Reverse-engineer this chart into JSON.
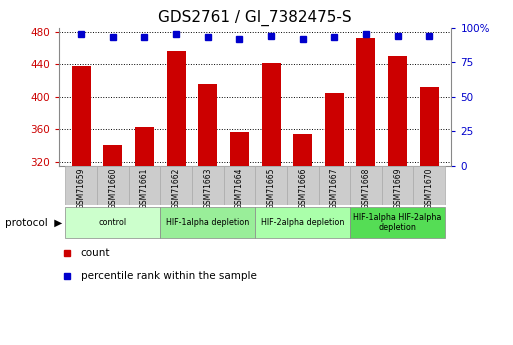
{
  "title": "GDS2761 / GI_7382475-S",
  "samples": [
    "GSM71659",
    "GSM71660",
    "GSM71661",
    "GSM71662",
    "GSM71663",
    "GSM71664",
    "GSM71665",
    "GSM71666",
    "GSM71667",
    "GSM71668",
    "GSM71669",
    "GSM71670"
  ],
  "counts": [
    438,
    340,
    362,
    456,
    415,
    356,
    442,
    354,
    405,
    472,
    450,
    412
  ],
  "percentile_ranks": [
    95,
    93,
    93,
    95,
    93,
    92,
    94,
    92,
    93,
    95,
    94,
    94
  ],
  "ylim_left": [
    315,
    485
  ],
  "ylim_right": [
    0,
    100
  ],
  "yticks_left": [
    320,
    360,
    400,
    440,
    480
  ],
  "yticks_right": [
    0,
    25,
    50,
    75,
    100
  ],
  "yticklabels_right": [
    "0",
    "25",
    "50",
    "75",
    "100%"
  ],
  "bar_color": "#cc0000",
  "dot_color": "#0000cc",
  "bar_width": 0.6,
  "protocol_groups": [
    {
      "label": "control",
      "start": 0,
      "end": 2,
      "color": "#ccffcc"
    },
    {
      "label": "HIF-1alpha depletion",
      "start": 3,
      "end": 5,
      "color": "#99ee99"
    },
    {
      "label": "HIF-2alpha depletion",
      "start": 6,
      "end": 8,
      "color": "#aaffaa"
    },
    {
      "label": "HIF-1alpha HIF-2alpha\ndepletion",
      "start": 9,
      "end": 11,
      "color": "#55dd55"
    }
  ],
  "legend_count_label": "count",
  "legend_pct_label": "percentile rank within the sample",
  "bg_color": "#ffffff",
  "tick_label_color_left": "#cc0000",
  "tick_label_color_right": "#0000cc",
  "title_fontsize": 11,
  "tick_fontsize": 7.5,
  "sample_box_color": "#cccccc",
  "sample_box_edge": "#aaaaaa"
}
